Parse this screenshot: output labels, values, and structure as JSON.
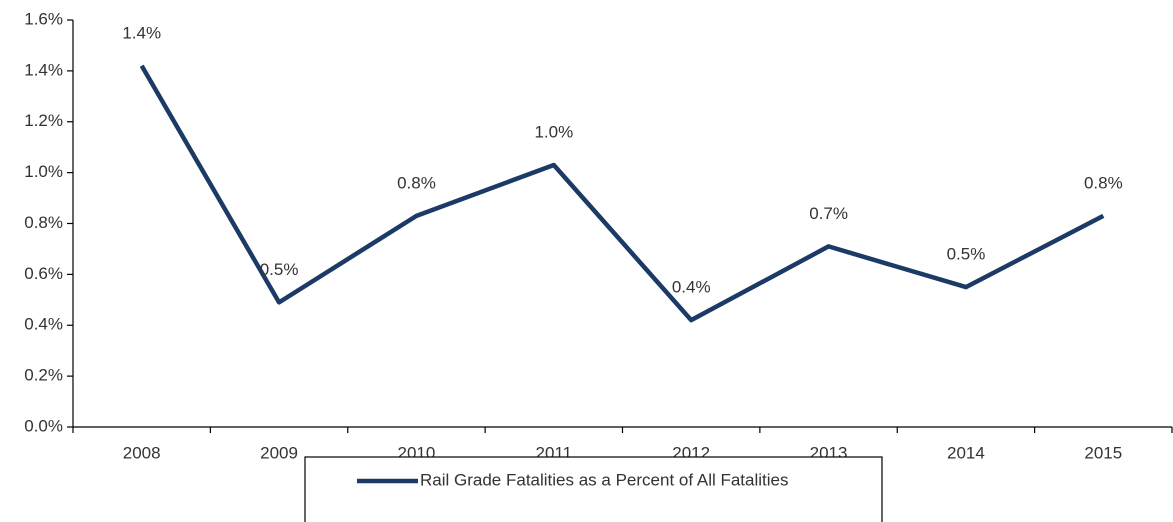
{
  "chart_data": {
    "type": "line",
    "categories": [
      "2008",
      "2009",
      "2010",
      "2011",
      "2012",
      "2013",
      "2014",
      "2015"
    ],
    "series": [
      {
        "name": "Rail Grade Fatalities as a Percent of All Fatalities",
        "color": "#1b3a66",
        "values": [
          1.42,
          0.49,
          0.83,
          1.03,
          0.42,
          0.71,
          0.55,
          0.83
        ],
        "value_labels": [
          "1.4%",
          "0.5%",
          "0.8%",
          "1.0%",
          "0.4%",
          "0.7%",
          "0.5%",
          "0.8%"
        ]
      }
    ],
    "ylim": [
      0,
      1.6
    ],
    "yticks": [
      {
        "value": 0,
        "label": "0.0%"
      },
      {
        "value": 0.2,
        "label": "0.2%"
      },
      {
        "value": 0.4,
        "label": "0.4%"
      },
      {
        "value": 0.6,
        "label": "0.6%"
      },
      {
        "value": 0.8,
        "label": "0.8%"
      },
      {
        "value": 1.0,
        "label": "1.0%"
      },
      {
        "value": 1.2,
        "label": "1.2%"
      },
      {
        "value": 1.4,
        "label": "1.4%"
      },
      {
        "value": 1.6,
        "label": "1.6%"
      }
    ],
    "grid": false,
    "legend": "bottom"
  }
}
